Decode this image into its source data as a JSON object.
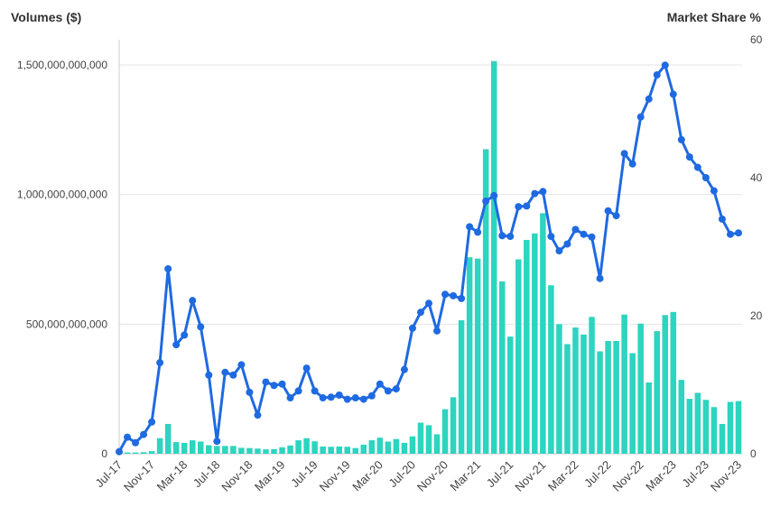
{
  "chart_data": {
    "type": "bar+line",
    "left_axis_title": "Volumes ($)",
    "right_axis_title": "Market Share %",
    "left_ticks": [
      "0",
      "500,000,000,000",
      "1,000,000,000,000",
      "1,500,000,000,000"
    ],
    "left_tick_values": [
      0,
      500000000000,
      1000000000000,
      1500000000000
    ],
    "right_ticks": [
      "0",
      "20",
      "40",
      "60"
    ],
    "right_tick_values": [
      0,
      20,
      40,
      60
    ],
    "left_ylim": [
      0,
      1500000000000
    ],
    "right_ylim": [
      0,
      60
    ],
    "x_tick_labels": [
      "Jul-17",
      "Nov-17",
      "Mar-18",
      "Jul-18",
      "Nov-18",
      "Mar-19",
      "Jul-19",
      "Nov-19",
      "Mar-20",
      "Jul-20",
      "Nov-20",
      "Mar-21",
      "Jul-21",
      "Nov-21",
      "Mar-22",
      "Jul-22",
      "Nov-22",
      "Mar-23",
      "Jul-23",
      "Nov-23"
    ],
    "x": [
      "Jul-17",
      "Aug-17",
      "Sep-17",
      "Oct-17",
      "Nov-17",
      "Dec-17",
      "Jan-18",
      "Feb-18",
      "Mar-18",
      "Apr-18",
      "May-18",
      "Jun-18",
      "Jul-18",
      "Aug-18",
      "Sep-18",
      "Oct-18",
      "Nov-18",
      "Dec-18",
      "Jan-19",
      "Feb-19",
      "Mar-19",
      "Apr-19",
      "May-19",
      "Jun-19",
      "Jul-19",
      "Aug-19",
      "Sep-19",
      "Oct-19",
      "Nov-19",
      "Dec-19",
      "Jan-20",
      "Feb-20",
      "Mar-20",
      "Apr-20",
      "May-20",
      "Jun-20",
      "Jul-20",
      "Aug-20",
      "Sep-20",
      "Oct-20",
      "Nov-20",
      "Dec-20",
      "Jan-21",
      "Feb-21",
      "Mar-21",
      "Apr-21",
      "May-21",
      "Jun-21",
      "Jul-21",
      "Aug-21",
      "Sep-21",
      "Oct-21",
      "Nov-21",
      "Dec-21",
      "Jan-22",
      "Feb-22",
      "Mar-22",
      "Apr-22",
      "May-22",
      "Jun-22",
      "Jul-22",
      "Aug-22",
      "Sep-22",
      "Oct-22",
      "Nov-22",
      "Dec-22",
      "Jan-23",
      "Feb-23",
      "Mar-23",
      "Apr-23",
      "May-23",
      "Jun-23",
      "Jul-23",
      "Aug-23",
      "Sep-23",
      "Oct-23",
      "Nov-23"
    ],
    "series": [
      {
        "type": "bar",
        "axis": "left",
        "color": "#2dd4bf",
        "values": [
          2000000000,
          5000000000,
          5000000000,
          6000000000,
          10000000000,
          60000000000,
          115000000000,
          45000000000,
          42000000000,
          52000000000,
          47000000000,
          33000000000,
          30000000000,
          30000000000,
          30000000000,
          23000000000,
          22000000000,
          20000000000,
          17000000000,
          18000000000,
          25000000000,
          32000000000,
          52000000000,
          60000000000,
          48000000000,
          28000000000,
          27000000000,
          28000000000,
          27000000000,
          22000000000,
          35000000000,
          52000000000,
          62000000000,
          47000000000,
          57000000000,
          42000000000,
          67000000000,
          120000000000,
          110000000000,
          75000000000,
          172000000000,
          218000000000,
          515000000000,
          758000000000,
          753000000000,
          1175000000000,
          1515000000000,
          665000000000,
          452000000000,
          750000000000,
          825000000000,
          850000000000,
          928000000000,
          650000000000,
          500000000000,
          423000000000,
          487000000000,
          460000000000,
          528000000000,
          395000000000,
          435000000000,
          435000000000,
          537000000000,
          388000000000,
          502000000000,
          275000000000,
          473000000000,
          535000000000,
          547000000000,
          285000000000,
          212000000000,
          235000000000,
          208000000000,
          180000000000,
          115000000000,
          200000000000,
          203000000000
        ]
      },
      {
        "type": "line",
        "axis": "right",
        "color": "#1f6ae0",
        "values": [
          0.3,
          2.4,
          1.6,
          2.8,
          4.6,
          13.2,
          26.8,
          15.8,
          17.2,
          22.2,
          18.4,
          11.4,
          1.8,
          11.8,
          11.4,
          12.9,
          8.9,
          5.6,
          10.4,
          9.9,
          10.1,
          8.1,
          9.1,
          12.4,
          9.1,
          8.1,
          8.2,
          8.5,
          7.9,
          8.1,
          7.9,
          8.4,
          10.1,
          9.1,
          9.4,
          12.2,
          18.2,
          20.5,
          21.8,
          17.8,
          23.1,
          22.9,
          22.5,
          32.9,
          32.1,
          36.6,
          37.4,
          31.6,
          31.5,
          35.8,
          35.9,
          37.7,
          38.0,
          31.5,
          29.4,
          30.4,
          32.5,
          31.8,
          31.4,
          25.4,
          35.2,
          34.5,
          43.5,
          42.0,
          48.8,
          51.4,
          54.9,
          56.3,
          52.1,
          45.5,
          43.0,
          41.5,
          40.0,
          38.1,
          34.0,
          31.8,
          32.0
        ]
      }
    ],
    "grid": true
  }
}
